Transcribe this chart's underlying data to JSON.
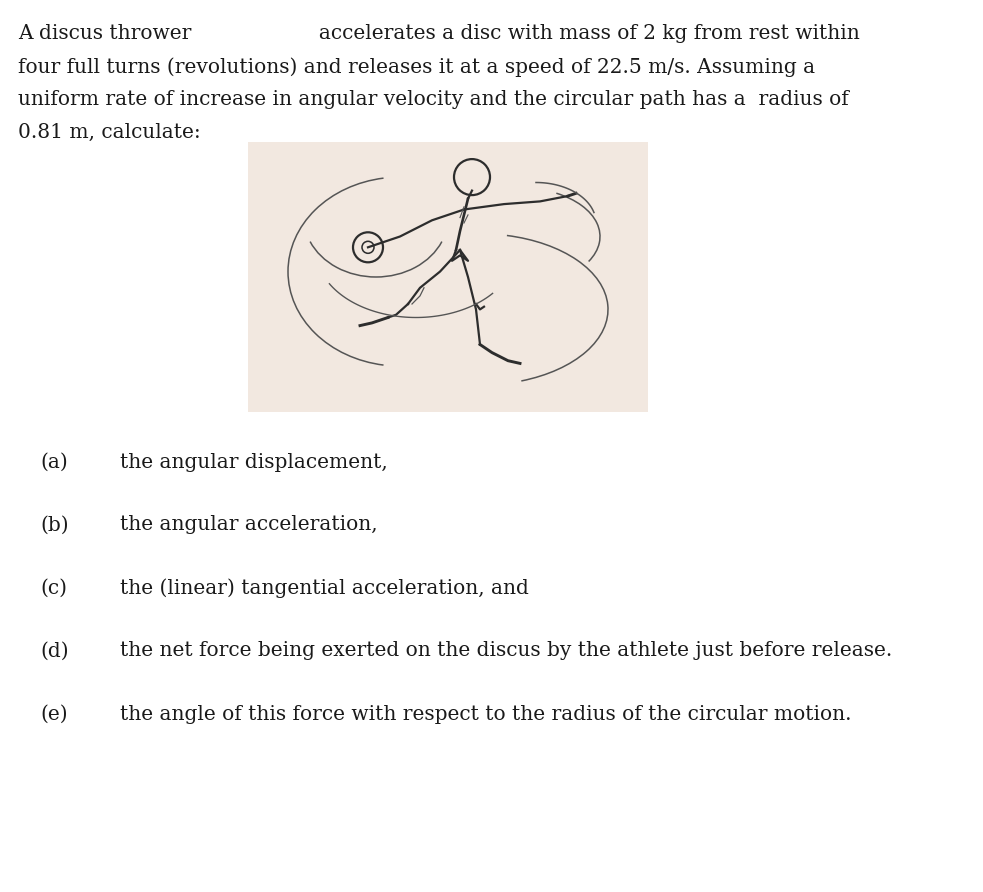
{
  "background_color": "#ffffff",
  "fig_width": 9.83,
  "fig_height": 8.92,
  "line1": "A discus thrower                    accelerates a disc with mass of 2 kg from rest within",
  "line2": "four full turns (revolutions) and releases it at a speed of 22.5 m/s. Assuming a",
  "line3": "uniform rate of increase in angular velocity and the circular path has a  radius of",
  "line4": "0.81 m, calculate:",
  "text_fontsize": 14.5,
  "text_font": "DejaVu Serif",
  "text_color": "#1a1a1a",
  "image_bg_color": "#f2e8e0",
  "items": [
    {
      "label": "(a)",
      "text": "the angular displacement,"
    },
    {
      "label": "(b)",
      "text": "the angular acceleration,"
    },
    {
      "label": "(c)",
      "text": "the (linear) tangential acceleration, and"
    },
    {
      "label": "(d)",
      "text": "the net force being exerted on the discus by the athlete just before release."
    },
    {
      "label": "(e)",
      "text": "the angle of this force with respect to the radius of the circular motion."
    }
  ]
}
